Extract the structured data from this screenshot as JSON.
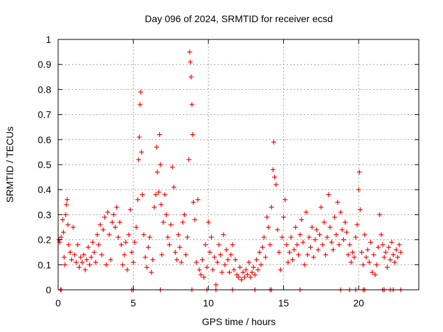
{
  "chart_data": {
    "type": "scatter",
    "title": "Day 096 of 2024, SRMTID for receiver ecsd",
    "xlabel": "GPS time / hours",
    "ylabel": "SRMTID / TECUs",
    "xlim": [
      0,
      24
    ],
    "ylim": [
      0,
      1
    ],
    "x_ticks": [
      0,
      5,
      10,
      15,
      20
    ],
    "y_ticks": [
      0,
      0.1,
      0.2,
      0.3,
      0.4,
      0.5,
      0.6,
      0.7,
      0.8,
      0.9,
      1
    ],
    "x_tick_labels": [
      "0",
      "5",
      "10",
      "15",
      "20"
    ],
    "y_tick_labels": [
      "0",
      "0.1",
      "0.2",
      "0.3",
      "0.4",
      "0.5",
      "0.6",
      "0.7",
      "0.8",
      "0.9",
      "1"
    ],
    "grid": true,
    "marker": "+",
    "color": "#ff0000",
    "series": [
      {
        "name": "SRMTID",
        "points": [
          [
            0.05,
            0.2
          ],
          [
            0.1,
            0.19
          ],
          [
            0.2,
            0.21
          ],
          [
            0.3,
            0.28
          ],
          [
            0.35,
            0.23
          ],
          [
            0.4,
            0.13
          ],
          [
            0.45,
            0.1
          ],
          [
            0.5,
            0.3
          ],
          [
            0.55,
            0.34
          ],
          [
            0.6,
            0.36
          ],
          [
            0.65,
            0.26
          ],
          [
            0.7,
            0.18
          ],
          [
            0.8,
            0.15
          ],
          [
            0.9,
            0.12
          ],
          [
            1.0,
            0.25
          ],
          [
            1.1,
            0.14
          ],
          [
            1.2,
            0.11
          ],
          [
            1.3,
            0.18
          ],
          [
            1.4,
            0.09
          ],
          [
            1.5,
            0.13
          ],
          [
            1.6,
            0.11
          ],
          [
            1.7,
            0.14
          ],
          [
            1.8,
            0.08
          ],
          [
            1.9,
            0.12
          ],
          [
            2.0,
            0.17
          ],
          [
            2.1,
            0.1
          ],
          [
            2.2,
            0.13
          ],
          [
            2.3,
            0.19
          ],
          [
            2.4,
            0.15
          ],
          [
            2.5,
            0.11
          ],
          [
            2.6,
            0.22
          ],
          [
            2.7,
            0.18
          ],
          [
            2.8,
            0.26
          ],
          [
            2.9,
            0.14
          ],
          [
            3.0,
            0.24
          ],
          [
            3.1,
            0.29
          ],
          [
            3.2,
            0.1
          ],
          [
            3.3,
            0.31
          ],
          [
            3.4,
            0.22
          ],
          [
            3.5,
            0.12
          ],
          [
            3.6,
            0.27
          ],
          [
            3.7,
            0.3
          ],
          [
            3.8,
            0.25
          ],
          [
            3.9,
            0.33
          ],
          [
            4.0,
            0.21
          ],
          [
            4.1,
            0.27
          ],
          [
            4.2,
            0.18
          ],
          [
            4.3,
            0.1
          ],
          [
            4.4,
            0.14
          ],
          [
            4.5,
            0.19
          ],
          [
            4.6,
            0.08
          ],
          [
            4.7,
            0.22
          ],
          [
            4.8,
            0.32
          ],
          [
            4.9,
            0.15
          ],
          [
            5.0,
            0.11
          ],
          [
            5.1,
            0.19
          ],
          [
            5.2,
            0.25
          ],
          [
            5.3,
            0.36
          ],
          [
            5.35,
            0.52
          ],
          [
            5.4,
            0.61
          ],
          [
            5.45,
            0.74
          ],
          [
            5.5,
            0.79
          ],
          [
            5.55,
            0.55
          ],
          [
            5.6,
            0.38
          ],
          [
            5.7,
            0.22
          ],
          [
            5.8,
            0.13
          ],
          [
            5.9,
            0.09
          ],
          [
            6.0,
            0.17
          ],
          [
            6.1,
            0.21
          ],
          [
            6.2,
            0.07
          ],
          [
            6.3,
            0.12
          ],
          [
            6.4,
            0.33
          ],
          [
            6.5,
            0.38
          ],
          [
            6.55,
            0.57
          ],
          [
            6.6,
            0.47
          ],
          [
            6.7,
            0.39
          ],
          [
            6.75,
            0.62
          ],
          [
            6.8,
            0.5
          ],
          [
            6.85,
            0.34
          ],
          [
            6.9,
            0.14
          ],
          [
            7.0,
            0.27
          ],
          [
            7.1,
            0.38
          ],
          [
            7.2,
            0.3
          ],
          [
            7.3,
            0.21
          ],
          [
            7.4,
            0.18
          ],
          [
            7.5,
            0.26
          ],
          [
            7.6,
            0.49
          ],
          [
            7.7,
            0.41
          ],
          [
            7.8,
            0.15
          ],
          [
            7.9,
            0.12
          ],
          [
            8.0,
            0.22
          ],
          [
            8.1,
            0.17
          ],
          [
            8.2,
            0.11
          ],
          [
            8.3,
            0.27
          ],
          [
            8.4,
            0.3
          ],
          [
            8.5,
            0.14
          ],
          [
            8.6,
            0.21
          ],
          [
            8.7,
            0.52
          ],
          [
            8.75,
            0.95
          ],
          [
            8.8,
            0.91
          ],
          [
            8.85,
            0.85
          ],
          [
            8.9,
            0.74
          ],
          [
            8.95,
            0.62
          ],
          [
            9.0,
            0.35
          ],
          [
            9.1,
            0.28
          ],
          [
            9.2,
            0.11
          ],
          [
            9.3,
            0.36
          ],
          [
            9.4,
            0.08
          ],
          [
            9.5,
            0.06
          ],
          [
            9.6,
            0.12
          ],
          [
            9.7,
            0.05
          ],
          [
            9.8,
            0.18
          ],
          [
            9.9,
            0.09
          ],
          [
            10.0,
            0.27
          ],
          [
            10.1,
            0.15
          ],
          [
            10.2,
            0.21
          ],
          [
            10.3,
            0.08
          ],
          [
            10.4,
            0.13
          ],
          [
            10.5,
            0.02
          ],
          [
            10.6,
            0.11
          ],
          [
            10.7,
            0.18
          ],
          [
            10.8,
            0.14
          ],
          [
            10.9,
            0.07
          ],
          [
            11.0,
            0.22
          ],
          [
            11.1,
            0.1
          ],
          [
            11.2,
            0.16
          ],
          [
            11.3,
            0.12
          ],
          [
            11.4,
            0.07
          ],
          [
            11.5,
            0.14
          ],
          [
            11.6,
            0.18
          ],
          [
            11.7,
            0.08
          ],
          [
            11.8,
            0.12
          ],
          [
            11.9,
            0.06
          ],
          [
            12.0,
            0.05
          ],
          [
            12.1,
            0.09
          ],
          [
            12.2,
            0.04
          ],
          [
            12.3,
            0.07
          ],
          [
            12.4,
            0.05
          ],
          [
            12.5,
            0.08
          ],
          [
            12.6,
            0.06
          ],
          [
            12.7,
            0.11
          ],
          [
            12.8,
            0.05
          ],
          [
            12.9,
            0.07
          ],
          [
            13.0,
            0.09
          ],
          [
            13.1,
            0.06
          ],
          [
            13.2,
            0.12
          ],
          [
            13.3,
            0.08
          ],
          [
            13.4,
            0.15
          ],
          [
            13.5,
            0.1
          ],
          [
            13.6,
            0.17
          ],
          [
            13.7,
            0.21
          ],
          [
            13.8,
            0.13
          ],
          [
            13.9,
            0.29
          ],
          [
            14.0,
            0.25
          ],
          [
            14.1,
            0.18
          ],
          [
            14.2,
            0.33
          ],
          [
            14.3,
            0.48
          ],
          [
            14.35,
            0.59
          ],
          [
            14.4,
            0.45
          ],
          [
            14.5,
            0.42
          ],
          [
            14.6,
            0.24
          ],
          [
            14.7,
            0.15
          ],
          [
            14.8,
            0.08
          ],
          [
            14.9,
            0.21
          ],
          [
            15.0,
            0.29
          ],
          [
            15.1,
            0.36
          ],
          [
            15.2,
            0.18
          ],
          [
            15.3,
            0.11
          ],
          [
            15.4,
            0.15
          ],
          [
            15.5,
            0.21
          ],
          [
            15.6,
            0.12
          ],
          [
            15.7,
            0.16
          ],
          [
            15.8,
            0.25
          ],
          [
            15.9,
            0.18
          ],
          [
            16.0,
            0.14
          ],
          [
            16.1,
            0.22
          ],
          [
            16.2,
            0.28
          ],
          [
            16.3,
            0.19
          ],
          [
            16.4,
            0.1
          ],
          [
            16.5,
            0.31
          ],
          [
            16.6,
            0.14
          ],
          [
            16.7,
            0.21
          ],
          [
            16.8,
            0.17
          ],
          [
            16.9,
            0.25
          ],
          [
            17.0,
            0.13
          ],
          [
            17.1,
            0.2
          ],
          [
            17.2,
            0.24
          ],
          [
            17.3,
            0.16
          ],
          [
            17.4,
            0.22
          ],
          [
            17.5,
            0.33
          ],
          [
            17.6,
            0.18
          ],
          [
            17.7,
            0.27
          ],
          [
            17.8,
            0.14
          ],
          [
            17.9,
            0.21
          ],
          [
            18.0,
            0.38
          ],
          [
            18.1,
            0.25
          ],
          [
            18.2,
            0.19
          ],
          [
            18.3,
            0.16
          ],
          [
            18.4,
            0.29
          ],
          [
            18.5,
            0.22
          ],
          [
            18.6,
            0.35
          ],
          [
            18.7,
            0.18
          ],
          [
            18.8,
            0.31
          ],
          [
            18.9,
            0.24
          ],
          [
            19.0,
            0.2
          ],
          [
            19.1,
            0.27
          ],
          [
            19.2,
            0.23
          ],
          [
            19.3,
            0.14
          ],
          [
            19.4,
            0.18
          ],
          [
            19.5,
            0.11
          ],
          [
            19.6,
            0.15
          ],
          [
            19.7,
            0.13
          ],
          [
            19.8,
            0.21
          ],
          [
            19.9,
            0.26
          ],
          [
            20.0,
            0.4
          ],
          [
            20.05,
            0.47
          ],
          [
            20.1,
            0.32
          ],
          [
            20.2,
            0.15
          ],
          [
            20.3,
            0.1
          ],
          [
            20.4,
            0.22
          ],
          [
            20.5,
            0.13
          ],
          [
            20.6,
            0.16
          ],
          [
            20.7,
            0.11
          ],
          [
            20.8,
            0.19
          ],
          [
            20.9,
            0.07
          ],
          [
            21.0,
            0.14
          ],
          [
            21.1,
            0.06
          ],
          [
            21.2,
            0.1
          ],
          [
            21.3,
            0.17
          ],
          [
            21.4,
            0.3
          ],
          [
            21.5,
            0.22
          ],
          [
            21.6,
            0.18
          ],
          [
            21.7,
            0.13
          ],
          [
            21.8,
            0.15
          ],
          [
            21.9,
            0.09
          ],
          [
            22.0,
            0.17
          ],
          [
            22.1,
            0.12
          ],
          [
            22.2,
            0.19
          ],
          [
            22.3,
            0.14
          ],
          [
            22.4,
            0.11
          ],
          [
            22.5,
            0.16
          ],
          [
            22.6,
            0.13
          ],
          [
            22.7,
            0.18
          ],
          [
            22.8,
            0.15
          ],
          [
            0.15,
            0
          ],
          [
            0.2,
            0
          ],
          [
            4.9,
            0
          ],
          [
            5.0,
            0
          ],
          [
            6.8,
            0
          ],
          [
            8.9,
            0
          ],
          [
            9.9,
            0
          ],
          [
            10.5,
            0
          ],
          [
            11.6,
            0
          ],
          [
            13.1,
            0
          ],
          [
            14.1,
            0
          ],
          [
            14.2,
            0
          ],
          [
            16.1,
            0
          ],
          [
            18.8,
            0
          ],
          [
            19.4,
            0
          ],
          [
            19.8,
            0
          ],
          [
            20.3,
            0
          ],
          [
            20.4,
            0
          ],
          [
            21.6,
            0
          ],
          [
            21.7,
            0
          ],
          [
            22.1,
            0
          ],
          [
            22.3,
            0
          ],
          [
            22.8,
            0
          ]
        ]
      }
    ]
  }
}
